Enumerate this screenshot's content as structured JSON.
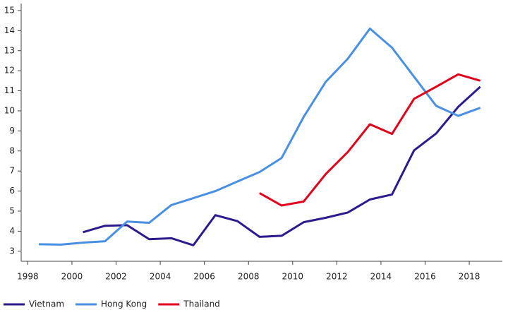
{
  "chart_data": {
    "type": "line",
    "x": [
      1998.5,
      1999.5,
      2000.5,
      2001.5,
      2002.5,
      2003.5,
      2004.5,
      2005.5,
      2006.5,
      2007.5,
      2008.5,
      2009.5,
      2010.5,
      2011.5,
      2012.5,
      2013.5,
      2014.5,
      2015.5,
      2016.5,
      2017.5,
      2018.5
    ],
    "series": [
      {
        "name": "Vietnam",
        "color": "#2b1b8c",
        "values": [
          null,
          null,
          3.95,
          4.27,
          4.3,
          3.6,
          3.65,
          3.3,
          4.8,
          4.5,
          3.72,
          3.77,
          4.45,
          4.67,
          4.93,
          5.58,
          5.83,
          8.03,
          8.87,
          10.2,
          11.2
        ]
      },
      {
        "name": "Hong Kong",
        "color": "#4a90e2",
        "values": [
          3.35,
          3.33,
          3.43,
          3.5,
          4.48,
          4.42,
          5.3,
          5.65,
          6.0,
          6.48,
          6.95,
          7.65,
          9.7,
          11.45,
          12.6,
          14.1,
          13.15,
          11.7,
          10.25,
          9.75,
          10.15
        ]
      },
      {
        "name": "Thailand",
        "color": "#e0001b",
        "values": [
          null,
          null,
          null,
          null,
          null,
          null,
          null,
          null,
          null,
          null,
          5.9,
          5.28,
          5.48,
          6.85,
          7.95,
          9.33,
          8.85,
          10.6,
          11.2,
          11.82,
          11.5
        ]
      }
    ],
    "xlim": [
      1997.7,
      2019.5
    ],
    "xticks": [
      1998,
      2000,
      2002,
      2004,
      2006,
      2008,
      2010,
      2012,
      2014,
      2016,
      2018
    ],
    "ylim": [
      2.5,
      15.35
    ],
    "yticks": [
      3,
      4,
      5,
      6,
      7,
      8,
      9,
      10,
      11,
      12,
      13,
      14,
      15
    ],
    "legend": "bottom-left"
  }
}
